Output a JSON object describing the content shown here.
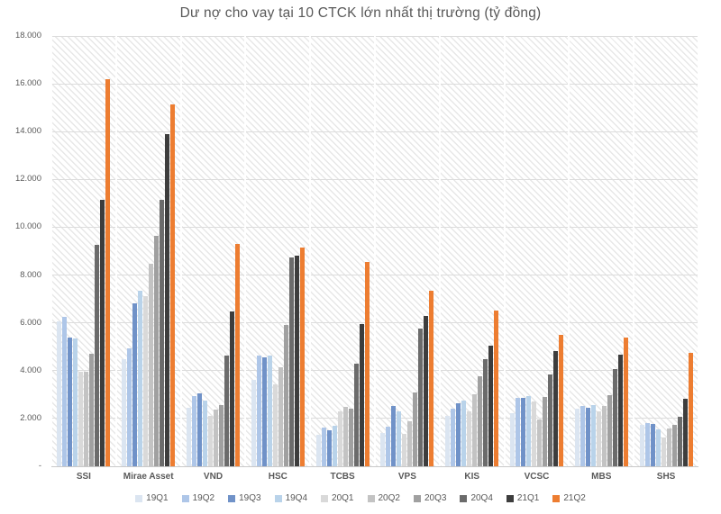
{
  "title": "Dư nợ cho vay tại 10 CTCK lớn nhất thị trường (tỷ đồng)",
  "chart_data": {
    "type": "bar",
    "title": "Dư nợ cho vay tại 10 CTCK lớn nhất thị trường (tỷ đồng)",
    "categories": [
      "SSI",
      "Mirae Asset",
      "VND",
      "HSC",
      "TCBS",
      "VPS",
      "KIS",
      "VCSC",
      "MBS",
      "SHS"
    ],
    "series": [
      {
        "name": "19Q1",
        "color": "#dbe5f1",
        "values": [
          6050,
          4470,
          2440,
          3630,
          1320,
          1380,
          2100,
          2230,
          2400,
          1750
        ]
      },
      {
        "name": "19Q2",
        "color": "#aec6e8",
        "values": [
          6250,
          4940,
          2940,
          4630,
          1630,
          1650,
          2400,
          2880,
          2530,
          1810
        ]
      },
      {
        "name": "19Q3",
        "color": "#7092c8",
        "values": [
          5370,
          6820,
          3060,
          4570,
          1500,
          2530,
          2630,
          2850,
          2440,
          1780
        ]
      },
      {
        "name": "19Q4",
        "color": "#b9d3ea",
        "values": [
          5340,
          7340,
          2750,
          4630,
          1710,
          2310,
          2750,
          2940,
          2560,
          1560
        ]
      },
      {
        "name": "20Q1",
        "color": "#d9d9d9",
        "values": [
          3960,
          7110,
          2100,
          3440,
          2310,
          1350,
          2310,
          2730,
          2310,
          1190
        ]
      },
      {
        "name": "20Q2",
        "color": "#c3c3c3",
        "values": [
          3950,
          8470,
          2380,
          4160,
          2480,
          1900,
          3000,
          1940,
          2530,
          1600
        ]
      },
      {
        "name": "20Q3",
        "color": "#a0a0a0",
        "values": [
          4710,
          9630,
          2560,
          5910,
          2400,
          3100,
          3750,
          2900,
          2980,
          1750
        ]
      },
      {
        "name": "20Q4",
        "color": "#6b6b6b",
        "values": [
          9250,
          11140,
          4650,
          8750,
          4310,
          5750,
          4500,
          3840,
          4060,
          2060
        ]
      },
      {
        "name": "21Q1",
        "color": "#3d3d3d",
        "values": [
          11150,
          13900,
          6460,
          8800,
          5950,
          6300,
          5060,
          4810,
          4660,
          2810
        ]
      },
      {
        "name": "21Q2",
        "color": "#ed7d31",
        "values": [
          16200,
          15150,
          9300,
          9150,
          8530,
          7350,
          6530,
          5500,
          5380,
          4730
        ]
      }
    ],
    "ylim": [
      0,
      18000
    ],
    "ytick_step": 2000,
    "ytick_labels": [
      "-",
      "2.000",
      "4.000",
      "6.000",
      "8.000",
      "10.000",
      "12.000",
      "14.000",
      "16.000",
      "18.000"
    ],
    "grid": true,
    "legend_position": "bottom",
    "plot_background": "diagonal-hatch"
  }
}
